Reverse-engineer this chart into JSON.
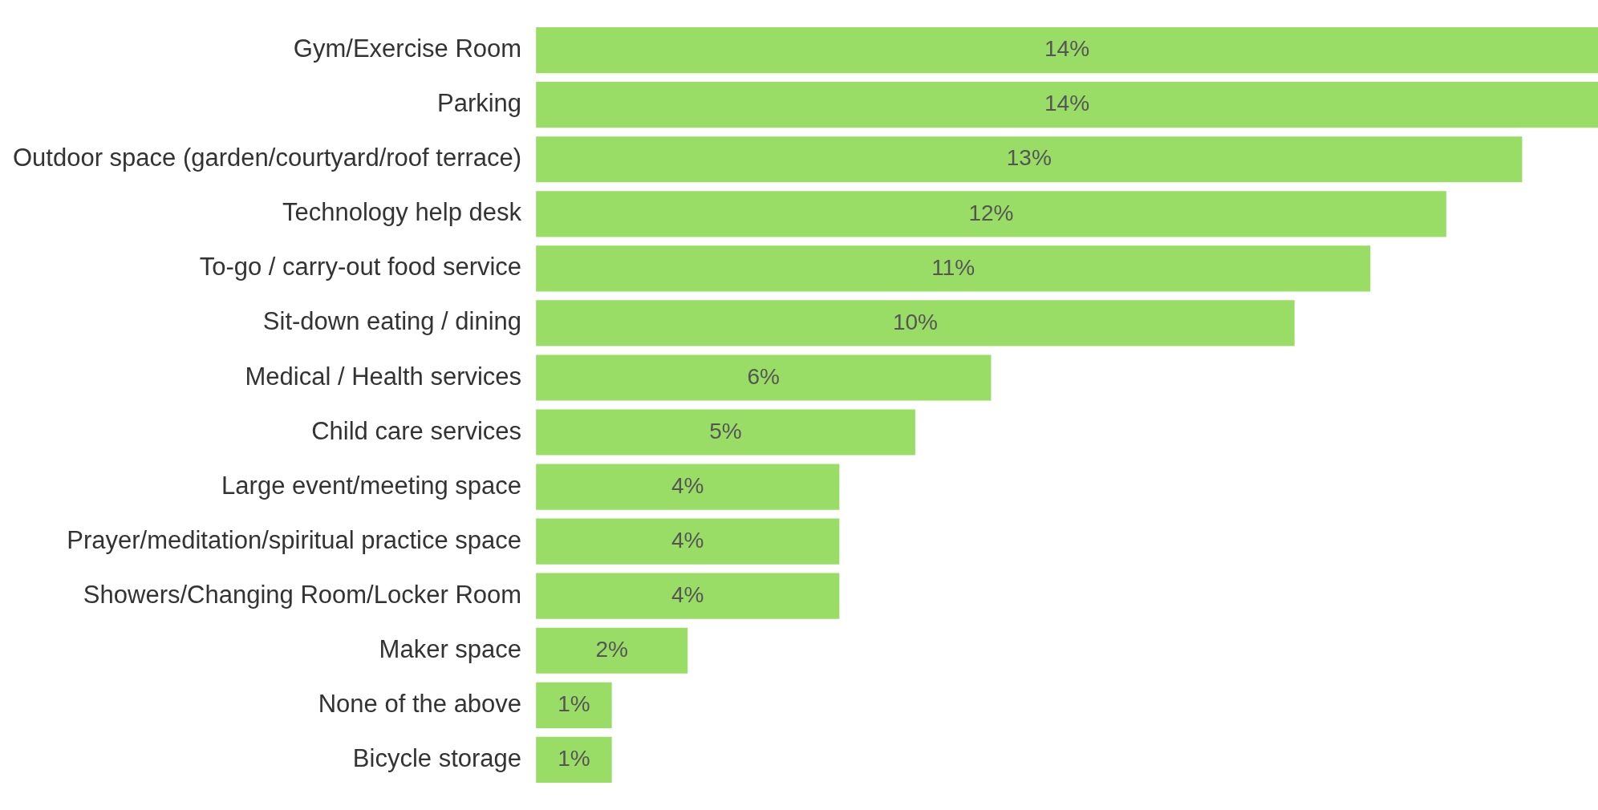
{
  "chart_data": {
    "type": "bar",
    "orientation": "horizontal",
    "categories": [
      "Gym/Exercise Room",
      "Parking",
      "Outdoor space (garden/courtyard/roof terrace)",
      "Technology help desk",
      "To-go / carry-out food service",
      "Sit-down eating / dining",
      "Medical / Health services",
      "Child care services",
      "Large event/meeting space",
      "Prayer/meditation/spiritual practice space",
      "Showers/Changing Room/Locker Room",
      "Maker space",
      "None of the above",
      "Bicycle storage"
    ],
    "values": [
      14,
      14,
      13,
      12,
      11,
      10,
      6,
      5,
      4,
      4,
      4,
      2,
      1,
      1
    ],
    "value_labels": [
      "14%",
      "14%",
      "13%",
      "12%",
      "11%",
      "10%",
      "6%",
      "5%",
      "4%",
      "4%",
      "4%",
      "2%",
      "1%",
      "1%"
    ],
    "color": "#99dd66",
    "grid": false,
    "legend": false
  }
}
